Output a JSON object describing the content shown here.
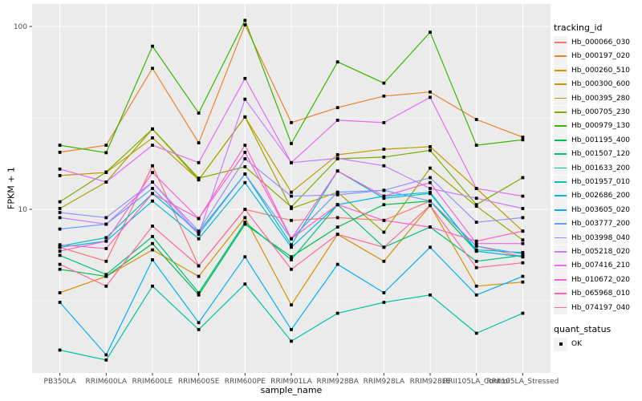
{
  "legend": {
    "tracking_title": "tracking_id",
    "quant_title": "quant_status",
    "quant_items": [
      {
        "label": "OK",
        "marker": "black-square"
      }
    ]
  },
  "style": {
    "panel_bg": "#EBEBEB",
    "grid_color": "#FFFFFF",
    "legend_key_bg": "#F2F2F2",
    "axis_text_color": "#4D4D4D",
    "tick_mark_color": "#333333",
    "point_color": "#000000",
    "background": "#FFFFFF"
  },
  "chart_data": {
    "type": "line",
    "title": "",
    "xlabel": "sample_name",
    "ylabel": "FPKM + 1",
    "y_scale": "log10",
    "y_ticks": [
      100,
      10
    ],
    "y_minor_ticks": [
      31.62,
      3.162
    ],
    "ylim": [
      1.26,
      129
    ],
    "grid": true,
    "legend_position": "right",
    "point_shape": "filled-square",
    "categories": [
      "PB350LA",
      "RRIM600LA",
      "RRIM600LE",
      "RRIM600SE",
      "RRIM600PE",
      "RRIM901LA",
      "RRIM928BA",
      "RRIM928LA",
      "RRIM928LE",
      "RRII105LA_Control",
      "RRII105LA_Stressed"
    ],
    "series": [
      {
        "name": "Hb_000066_030",
        "color": "#F8766D",
        "values": [
          6.2,
          5.2,
          17.3,
          4.9,
          10.0,
          8.7,
          9.0,
          8.7,
          11.1,
          6.3,
          5.5
        ]
      },
      {
        "name": "Hb_000197_020",
        "color": "#EA8331",
        "values": [
          20.5,
          22.4,
          59,
          23.1,
          102,
          29.8,
          36,
          41.6,
          43.8,
          31,
          24.8
        ]
      },
      {
        "name": "Hb_000260_510",
        "color": "#D89000",
        "values": [
          3.5,
          4.3,
          6.0,
          4.3,
          9.0,
          3.0,
          7.3,
          5.2,
          10.5,
          3.8,
          4.0
        ]
      },
      {
        "name": "Hb_000300_600",
        "color": "#C09B00",
        "values": [
          15.3,
          15.9,
          24.6,
          14.5,
          32,
          12.4,
          19.9,
          21.3,
          22,
          13.0,
          7.6
        ]
      },
      {
        "name": "Hb_000395_280",
        "color": "#A3A500",
        "values": [
          10.1,
          14.1,
          27.5,
          14.5,
          32,
          10.1,
          12.4,
          7.5,
          16.8,
          10.4,
          6.8
        ]
      },
      {
        "name": "Hb_000705_230",
        "color": "#7CAE00",
        "values": [
          11.0,
          16.0,
          27.5,
          14.8,
          17.1,
          10.3,
          18.9,
          19.3,
          21,
          10.6,
          14.9
        ]
      },
      {
        "name": "Hb_000979_130",
        "color": "#39B600",
        "values": [
          22.4,
          20.4,
          78,
          33.6,
          108,
          22.9,
          64,
          49,
          93,
          22.4,
          24
        ]
      },
      {
        "name": "Hb_001195_400",
        "color": "#00BB4E",
        "values": [
          4.7,
          4.3,
          6.5,
          3.4,
          8.3,
          5.5,
          8.0,
          10.6,
          11.1,
          5.9,
          5.5
        ]
      },
      {
        "name": "Hb_001507_120",
        "color": "#00BF7D",
        "values": [
          5.6,
          4.4,
          7.1,
          3.5,
          8.5,
          5.3,
          10.6,
          6.2,
          8.0,
          5.2,
          5.6
        ]
      },
      {
        "name": "Hb_001633_200",
        "color": "#00C1A7",
        "values": [
          1.7,
          1.5,
          3.8,
          2.2,
          3.9,
          1.9,
          2.7,
          3.1,
          3.4,
          2.1,
          2.7
        ]
      },
      {
        "name": "Hb_001957_010",
        "color": "#00BFC4",
        "values": [
          6.3,
          7.0,
          12.2,
          7.5,
          15.6,
          6.4,
          16.2,
          11.5,
          12.2,
          6.0,
          5.8
        ]
      },
      {
        "name": "Hb_002686_200",
        "color": "#00B8E5",
        "values": [
          6.2,
          6.7,
          11.1,
          6.9,
          14.0,
          6.2,
          10.6,
          11.8,
          12.4,
          5.9,
          5.5
        ]
      },
      {
        "name": "Hb_003605_020",
        "color": "#00B0F6",
        "values": [
          3.1,
          1.6,
          5.3,
          2.4,
          5.5,
          2.2,
          5.0,
          3.5,
          6.2,
          3.4,
          4.3
        ]
      },
      {
        "name": "Hb_003777_200",
        "color": "#619CFF",
        "values": [
          7.8,
          8.3,
          13.0,
          7.3,
          15.6,
          6.9,
          12.4,
          12.7,
          11.1,
          6.3,
          5.7
        ]
      },
      {
        "name": "Hb_003998_040",
        "color": "#9590FF",
        "values": [
          9.6,
          9.0,
          14.1,
          7.6,
          18.9,
          11.8,
          12.0,
          12.7,
          14.9,
          8.5,
          9.0
        ]
      },
      {
        "name": "Hb_005218_020",
        "color": "#C77CFF",
        "values": [
          9.0,
          8.3,
          14.1,
          7.3,
          40,
          18.0,
          19.0,
          17.3,
          13.0,
          11.5,
          10.1
        ]
      },
      {
        "name": "Hb_007416_210",
        "color": "#E76BF3",
        "values": [
          16.6,
          14.1,
          22.4,
          18.0,
          52,
          18.0,
          30.7,
          29.8,
          41,
          13.0,
          11.8
        ]
      },
      {
        "name": "Hb_010672_020",
        "color": "#F562DE",
        "values": [
          5.9,
          6.7,
          15.9,
          8.9,
          20.5,
          6.9,
          16.2,
          11.8,
          14.0,
          6.5,
          6.5
        ]
      },
      {
        "name": "Hb_065968_010",
        "color": "#FF61C3",
        "values": [
          6.4,
          6.1,
          12.2,
          8.9,
          22.4,
          6.9,
          10.6,
          8.7,
          8.0,
          6.7,
          7.6
        ]
      },
      {
        "name": "Hb_074197_040",
        "color": "#FF689F",
        "values": [
          5.0,
          3.8,
          8.1,
          4.9,
          10.0,
          4.7,
          7.3,
          6.2,
          10.5,
          4.8,
          5.1
        ]
      }
    ]
  }
}
